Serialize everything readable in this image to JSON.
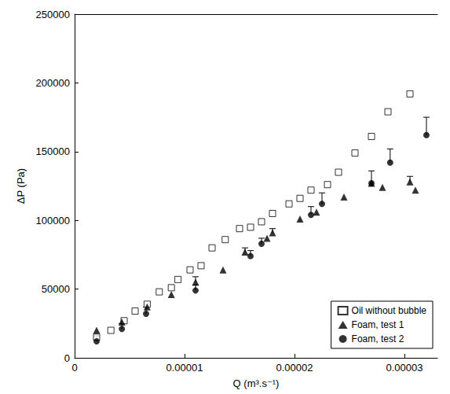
{
  "chart_data": {
    "type": "scatter",
    "x_label": "Q (m³.s⁻¹)",
    "y_label": "ΔP (Pa)",
    "xlim": [
      0,
      3.3e-05
    ],
    "xticks": [
      0,
      1e-05,
      2e-05,
      3e-05
    ],
    "ylim": [
      0,
      250000
    ],
    "yticks": [
      0,
      50000,
      100000,
      150000,
      200000,
      250000
    ],
    "grid": false,
    "legend": "lower right",
    "series": [
      {
        "name": "Oil without bubble",
        "color": "#000000",
        "marker": "square_open",
        "x": [
          2e-06,
          3.3e-06,
          4.5e-06,
          5.5e-06,
          6.6e-06,
          7.7e-06,
          8.8e-06,
          9.4e-06,
          1.05e-05,
          1.15e-05,
          1.25e-05,
          1.37e-05,
          1.5e-05,
          1.6e-05,
          1.7e-05,
          1.8e-05,
          1.95e-05,
          2.05e-05,
          2.15e-05,
          2.3e-05,
          2.4e-05,
          2.55e-05,
          2.7e-05,
          2.85e-05,
          3.05e-05
        ],
        "values": [
          15000,
          20000,
          27000,
          34000,
          39000,
          48000,
          51000,
          57000,
          64000,
          67000,
          80000,
          86000,
          94000,
          95000,
          99000,
          105000,
          112000,
          116000,
          122000,
          126000,
          135000,
          149000,
          161000,
          179000,
          192000
        ]
      },
      {
        "name": "Foam, test 1",
        "color": "#000000",
        "marker": "triangle",
        "x": [
          2e-06,
          4.3e-06,
          6.6e-06,
          8.8e-06,
          1.1e-05,
          1.35e-05,
          1.55e-05,
          1.75e-05,
          1.8e-05,
          2.05e-05,
          2.2e-05,
          2.45e-05,
          2.7e-05,
          2.8e-05,
          3.05e-05,
          3.1e-05
        ],
        "values": [
          20000,
          26000,
          37000,
          46000,
          55000,
          64000,
          77000,
          87000,
          91000,
          101000,
          106000,
          117000,
          127000,
          124000,
          128000,
          122000
        ],
        "errors": [
          null,
          null,
          null,
          null,
          4000,
          null,
          3000,
          null,
          3000,
          null,
          null,
          null,
          null,
          null,
          4000,
          null
        ]
      },
      {
        "name": "Foam, test 2",
        "color": "#000000",
        "marker": "circle",
        "x": [
          2e-06,
          4.3e-06,
          6.5e-06,
          1.1e-05,
          1.6e-05,
          1.7e-05,
          2.15e-05,
          2.25e-05,
          2.7e-05,
          2.87e-05,
          3.2e-05
        ],
        "values": [
          12000,
          21000,
          32000,
          49000,
          74000,
          83000,
          104000,
          112000,
          127000,
          142000,
          162000
        ],
        "errors": [
          4000,
          4000,
          5000,
          4000,
          4000,
          4000,
          6000,
          8000,
          9000,
          10000,
          13000
        ]
      }
    ]
  }
}
